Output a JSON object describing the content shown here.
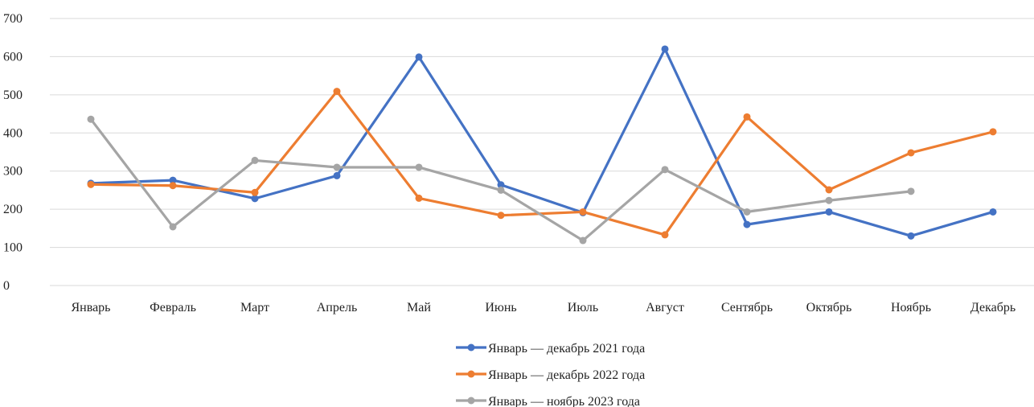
{
  "chart_data": {
    "type": "line",
    "categories": [
      "Январь",
      "Февраль",
      "Март",
      "Апрель",
      "Май",
      "Июнь",
      "Июль",
      "Август",
      "Сентябрь",
      "Октябрь",
      "Ноябрь",
      "Декабрь"
    ],
    "ylim": [
      0,
      700
    ],
    "yticks": [
      0,
      100,
      200,
      300,
      400,
      500,
      600,
      700
    ],
    "grid": true,
    "legend_position": "bottom",
    "series": [
      {
        "name": "Январь — декабрь 2021 года",
        "color": "#4472C4",
        "values": [
          268,
          276,
          228,
          288,
          599,
          264,
          191,
          620,
          160,
          193,
          130,
          193
        ]
      },
      {
        "name": "Январь — декабрь 2022 года",
        "color": "#ED7D31",
        "values": [
          265,
          262,
          244,
          509,
          229,
          184,
          193,
          133,
          442,
          251,
          348,
          403
        ]
      },
      {
        "name": "Январь — ноябрь 2023 года",
        "color": "#A5A5A5",
        "values": [
          436,
          154,
          328,
          310,
          310,
          250,
          118,
          304,
          193,
          223,
          247,
          null
        ]
      }
    ]
  }
}
